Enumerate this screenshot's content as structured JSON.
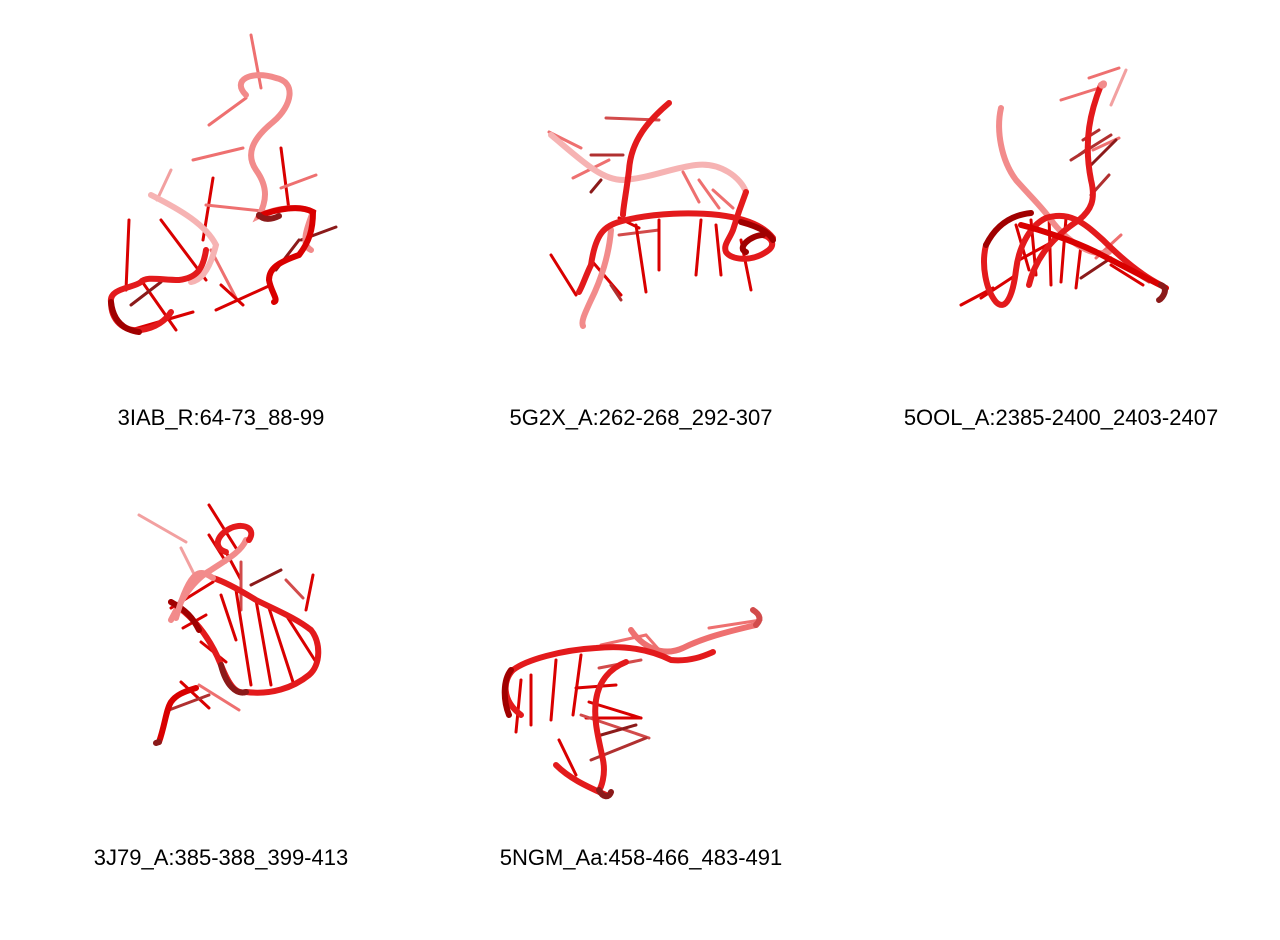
{
  "colors": {
    "backbone_dark": "#a00000",
    "backbone": "#e31a1c",
    "backbone_light": "#f28b8b",
    "backbone_faded": "#f6b3b3",
    "base": "#d90000",
    "base_light": "#ee7070",
    "base_dark": "#8b1a1a"
  },
  "structures": [
    {
      "label": "3IAB_R:64-73_88-99",
      "icon": "rna-3d-structure-render"
    },
    {
      "label": "5G2X_A:262-268_292-307",
      "icon": "rna-3d-structure-render"
    },
    {
      "label": "5OOL_A:2385-2400_2403-2407",
      "icon": "rna-3d-structure-render"
    },
    {
      "label": "3J79_A:385-388_399-413",
      "icon": "rna-3d-structure-render"
    },
    {
      "label": "5NGM_Aa:458-466_483-491",
      "icon": "rna-3d-structure-render"
    }
  ]
}
